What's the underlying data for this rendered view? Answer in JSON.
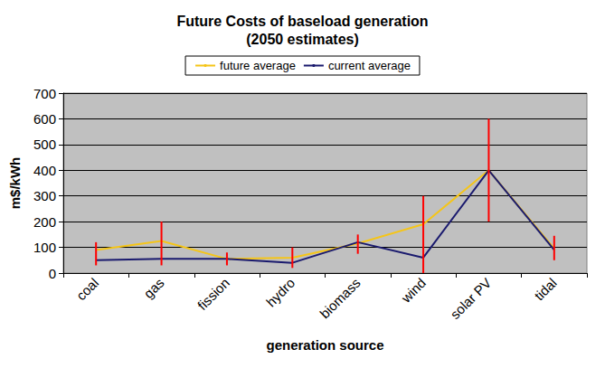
{
  "chart_data": {
    "type": "line",
    "title": "Future Costs of baseload generation\n(2050 estimates)",
    "x_label": "generation source",
    "y_label": "m$/kWh",
    "categories": [
      "coal",
      "gas",
      "fission",
      "hydro",
      "biomass",
      "wind",
      "solar PV",
      "tidal"
    ],
    "series": [
      {
        "name": "future average",
        "color": "#f5c518",
        "marker": "none",
        "values": [
          90,
          125,
          55,
          60,
          115,
          190,
          400,
          95
        ]
      },
      {
        "name": "current average",
        "color": "#1a1a6e",
        "marker": "none",
        "values": [
          50,
          55,
          55,
          40,
          120,
          60,
          400,
          90
        ]
      }
    ],
    "error_bars": {
      "color": "#ff0000",
      "low": [
        30,
        30,
        30,
        20,
        75,
        0,
        200,
        50
      ],
      "high": [
        120,
        200,
        80,
        100,
        150,
        300,
        600,
        145
      ]
    },
    "ylim": [
      0,
      700
    ],
    "yticks": [
      0,
      100,
      200,
      300,
      400,
      500,
      600,
      700
    ],
    "grid": true,
    "legend": "top"
  }
}
